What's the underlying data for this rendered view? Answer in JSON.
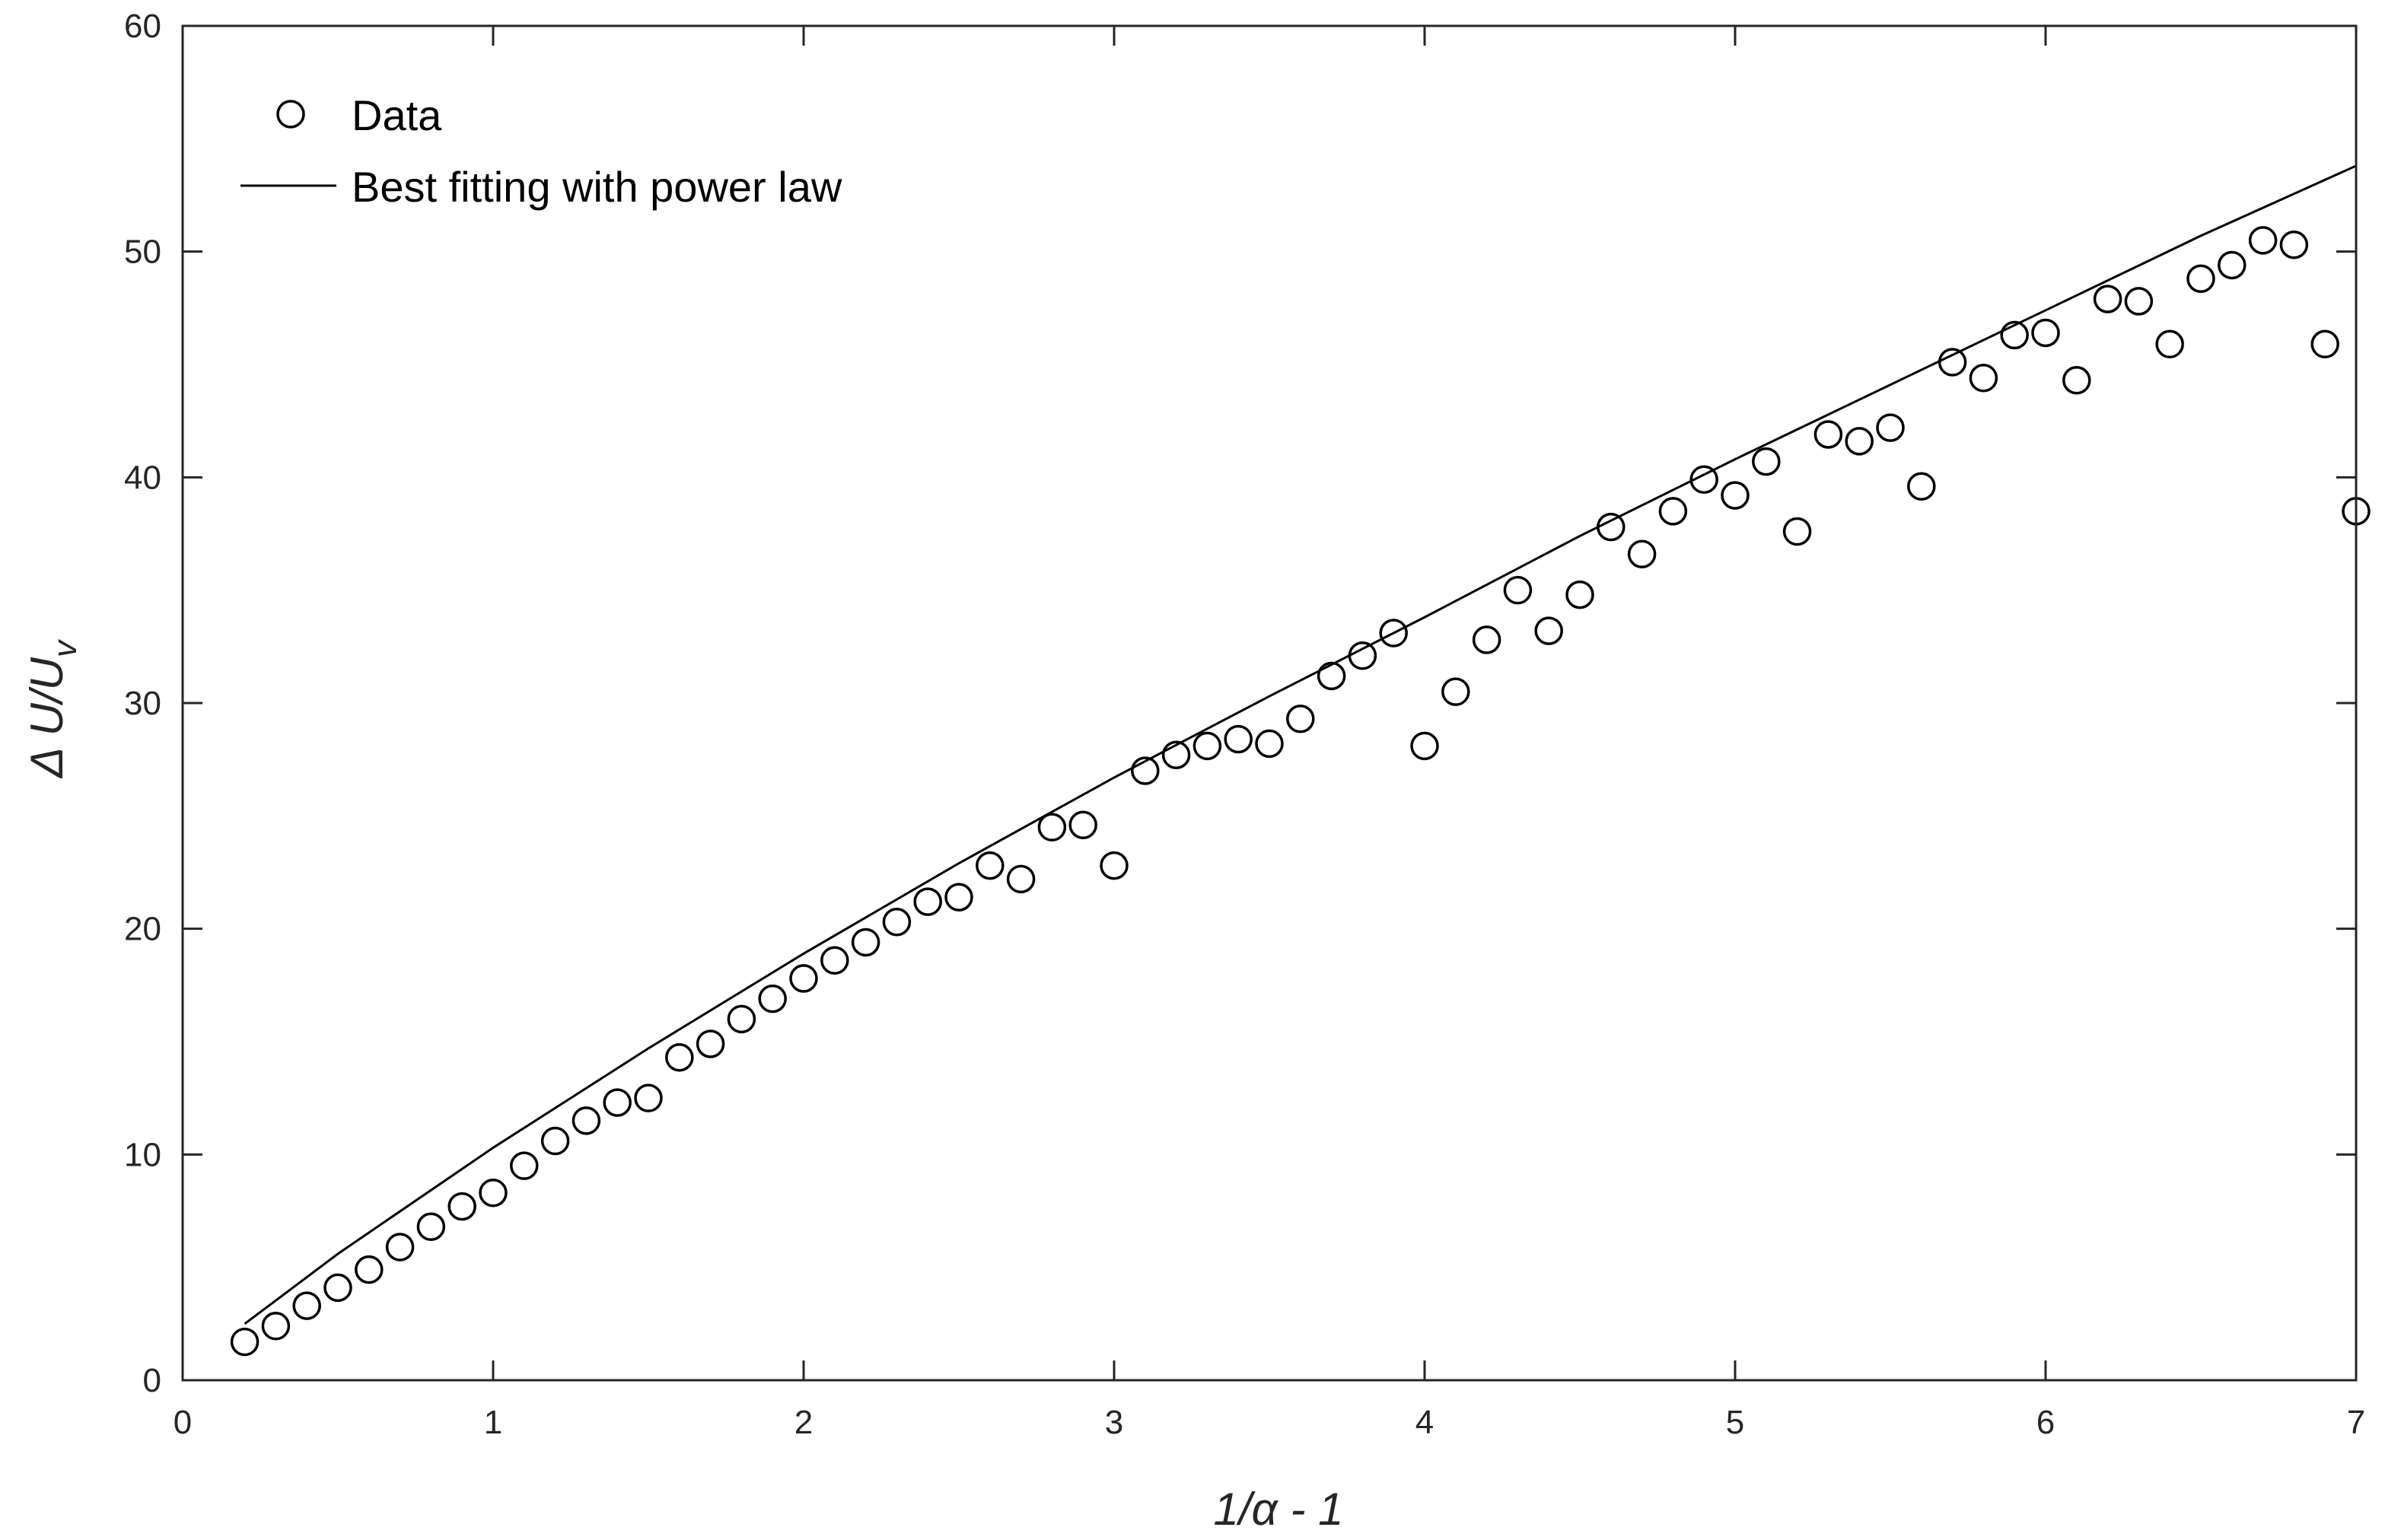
{
  "chart_data": {
    "type": "scatter",
    "xlabel": "1/α - 1",
    "ylabel_main": "Δ U/U",
    "ylabel_sub": "v",
    "xlim": [
      0,
      7
    ],
    "ylim": [
      0,
      60
    ],
    "xticks": [
      0,
      1,
      2,
      3,
      4,
      5,
      6,
      7
    ],
    "yticks": [
      0,
      10,
      20,
      30,
      40,
      50,
      60
    ],
    "grid": false,
    "legend_position": "top-left",
    "colors": {
      "axis": "#262626",
      "markers": "#000000",
      "line": "#000000"
    },
    "series": [
      {
        "name": "Data",
        "kind": "scatter",
        "marker": "open-circle",
        "x": [
          0.2,
          0.3,
          0.4,
          0.5,
          0.6,
          0.7,
          0.8,
          0.9,
          1.0,
          1.1,
          1.2,
          1.3,
          1.4,
          1.5,
          1.6,
          1.7,
          1.8,
          1.9,
          2.0,
          2.1,
          2.2,
          2.3,
          2.4,
          2.5,
          2.6,
          2.7,
          2.8,
          2.9,
          3.0,
          3.1,
          3.2,
          3.3,
          3.4,
          3.5,
          3.6,
          3.7,
          3.8,
          3.9,
          4.0,
          4.1,
          4.2,
          4.3,
          4.4,
          4.5,
          4.6,
          4.7,
          4.8,
          4.9,
          5.0,
          5.1,
          5.2,
          5.3,
          5.4,
          5.5,
          5.6,
          5.7,
          5.8,
          5.9,
          6.0,
          6.1,
          6.2,
          6.3,
          6.4,
          6.5,
          6.6,
          6.7,
          6.8,
          6.9,
          7.0
        ],
        "y": [
          1.7,
          2.4,
          3.3,
          4.1,
          4.9,
          5.9,
          6.8,
          7.7,
          8.3,
          9.5,
          10.6,
          11.5,
          12.3,
          12.5,
          14.3,
          14.9,
          16.0,
          16.9,
          17.8,
          18.6,
          19.4,
          20.3,
          21.2,
          21.4,
          22.8,
          22.2,
          24.5,
          24.6,
          22.8,
          27.0,
          27.7,
          28.1,
          28.4,
          28.2,
          29.3,
          31.2,
          32.1,
          33.1,
          28.1,
          30.5,
          32.8,
          35.0,
          33.2,
          34.8,
          37.8,
          36.6,
          38.5,
          39.9,
          39.2,
          40.7,
          37.6,
          41.9,
          41.6,
          42.2,
          39.6,
          45.1,
          44.4,
          46.3,
          46.4,
          44.3,
          47.9,
          47.8,
          45.9,
          48.8,
          49.4,
          50.5,
          50.3,
          45.9,
          38.5
        ]
      },
      {
        "name": "Best fitting with power law",
        "kind": "line",
        "x": [
          0.2,
          0.5,
          1.0,
          1.5,
          2.0,
          2.5,
          3.0,
          3.5,
          4.0,
          4.5,
          5.0,
          5.5,
          6.0,
          6.5,
          7.0
        ],
        "y": [
          2.5,
          5.6,
          10.3,
          14.7,
          18.9,
          22.9,
          26.7,
          30.3,
          33.8,
          37.4,
          40.8,
          44.1,
          47.4,
          50.7,
          53.8
        ]
      }
    ]
  }
}
